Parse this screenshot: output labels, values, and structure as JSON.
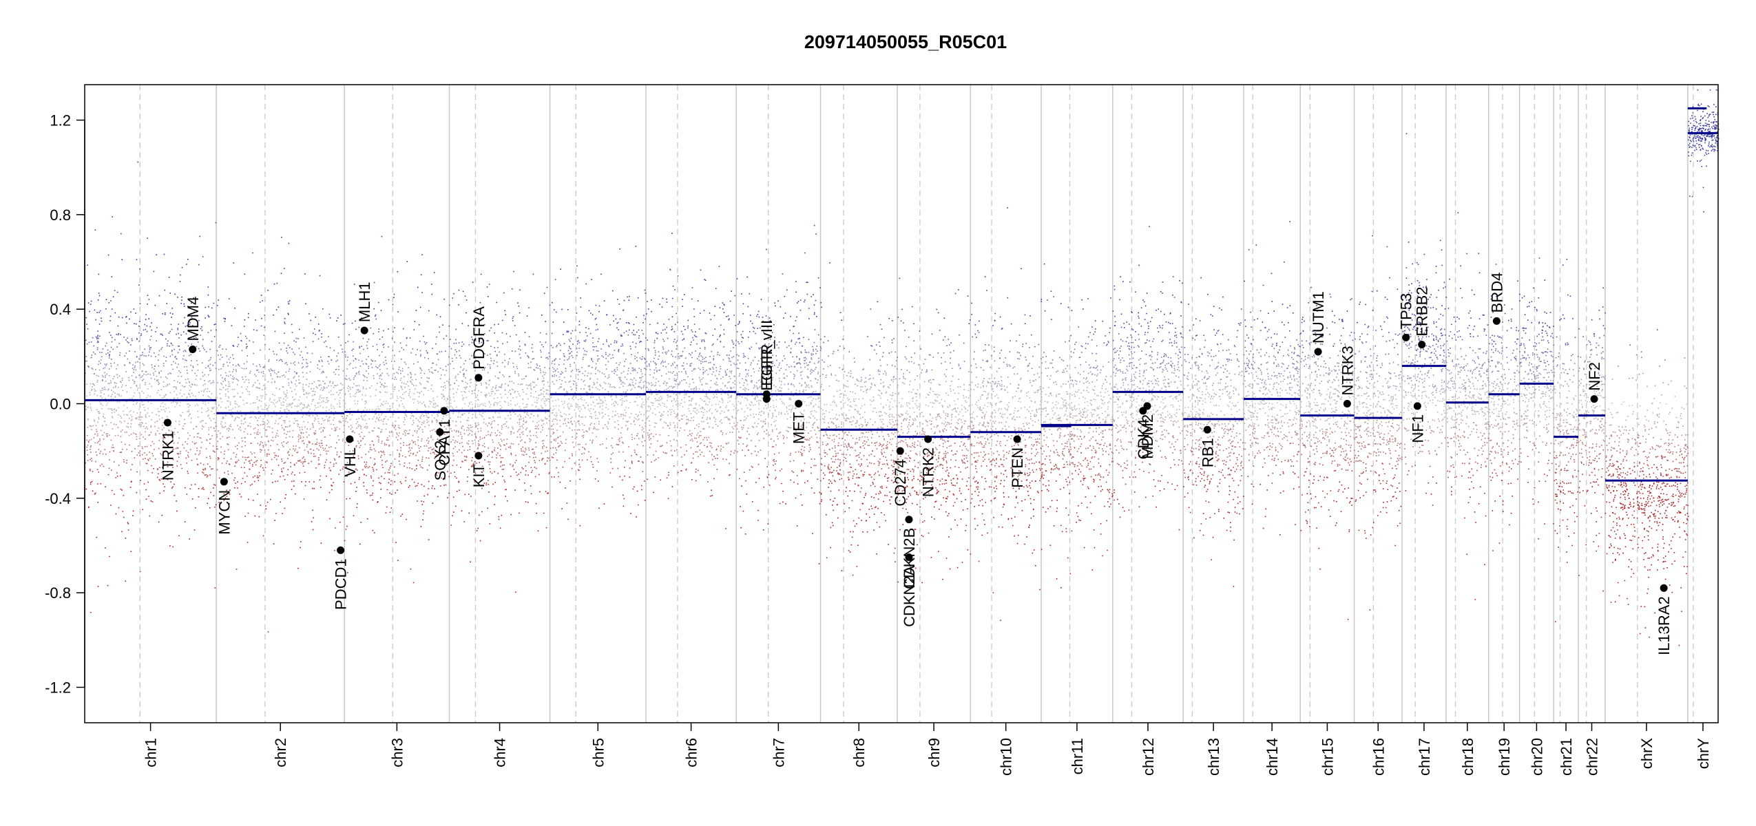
{
  "chart_data": {
    "type": "scatter",
    "title": "209714050055_R05C01",
    "xlabel": "",
    "ylabel": "",
    "ylim": [
      -1.35,
      1.35
    ],
    "yticks": [
      -1.2,
      -0.8,
      -0.4,
      0.0,
      0.4,
      0.8,
      1.2
    ],
    "ytick_labels": [
      "-1.2",
      "-0.8",
      "-0.4",
      "0.0",
      "0.4",
      "0.8",
      "1.2"
    ],
    "colors": {
      "gain": "#3b3ba0",
      "loss": "#a82020",
      "neutral": "#bdbdbd",
      "segment": "#00008b",
      "gene": "#000000",
      "border": "#c8c8c8",
      "centromere": "#c8c8c8"
    },
    "chromosomes": [
      {
        "name": "chr1",
        "start": 0.0,
        "end": 248.9,
        "centromere": 0.42,
        "segment": 0.015,
        "sd": 0.22
      },
      {
        "name": "chr2",
        "start": 248.9,
        "end": 491.1,
        "centromere": 0.38,
        "segment": -0.04,
        "sd": 0.2
      },
      {
        "name": "chr3",
        "start": 491.1,
        "end": 689.4,
        "centromere": 0.46,
        "segment": -0.035,
        "sd": 0.2
      },
      {
        "name": "chr4",
        "start": 689.4,
        "end": 879.6,
        "centromere": 0.26,
        "segment": -0.03,
        "sd": 0.2
      },
      {
        "name": "chr5",
        "start": 879.6,
        "end": 1061.1,
        "centromere": 0.27,
        "segment": 0.04,
        "sd": 0.18
      },
      {
        "name": "chr6",
        "start": 1061.1,
        "end": 1231.9,
        "centromere": 0.35,
        "segment": 0.05,
        "sd": 0.18
      },
      {
        "name": "chr7",
        "start": 1231.9,
        "end": 1391.2,
        "centromere": 0.38,
        "segment": 0.04,
        "sd": 0.19
      },
      {
        "name": "chr8",
        "start": 1391.2,
        "end": 1536.3,
        "centromere": 0.3,
        "segment": -0.11,
        "sd": 0.2
      },
      {
        "name": "chr9",
        "start": 1536.3,
        "end": 1674.7,
        "centromere": 0.31,
        "segment": -0.14,
        "sd": 0.2
      },
      {
        "name": "chr10",
        "start": 1674.7,
        "end": 1808.5,
        "centromere": 0.3,
        "segment": -0.12,
        "sd": 0.21
      },
      {
        "name": "chr11",
        "start": 1808.5,
        "end": 1943.6,
        "centromere": 0.4,
        "segment": -0.09,
        "sd": 0.2
      },
      {
        "name": "chr12",
        "start": 1943.6,
        "end": 2076.9,
        "centromere": 0.27,
        "segment": 0.05,
        "sd": 0.2
      },
      {
        "name": "chr13",
        "start": 2076.9,
        "end": 2191.3,
        "centromere": 0.15,
        "segment": -0.065,
        "sd": 0.2
      },
      {
        "name": "chr14",
        "start": 2191.3,
        "end": 2298.3,
        "centromere": 0.16,
        "segment": 0.02,
        "sd": 0.18
      },
      {
        "name": "chr15",
        "start": 2298.3,
        "end": 2400.3,
        "centromere": 0.18,
        "segment": -0.05,
        "sd": 0.2
      },
      {
        "name": "chr16",
        "start": 2400.3,
        "end": 2490.6,
        "centromere": 0.4,
        "segment": -0.06,
        "sd": 0.2
      },
      {
        "name": "chr17",
        "start": 2490.6,
        "end": 2573.9,
        "centromere": 0.3,
        "segment": 0.16,
        "sd": 0.2
      },
      {
        "name": "chr18",
        "start": 2573.9,
        "end": 2654.3,
        "centromere": 0.22,
        "segment": 0.005,
        "sd": 0.2
      },
      {
        "name": "chr19",
        "start": 2654.3,
        "end": 2712.9,
        "centromere": 0.45,
        "segment": 0.04,
        "sd": 0.2
      },
      {
        "name": "chr20",
        "start": 2712.9,
        "end": 2777.3,
        "centromere": 0.44,
        "segment": 0.085,
        "sd": 0.18
      },
      {
        "name": "chr21",
        "start": 2777.3,
        "end": 2824.0,
        "centromere": 0.26,
        "segment": -0.14,
        "sd": 0.2
      },
      {
        "name": "chr22",
        "start": 2824.0,
        "end": 2874.8,
        "centromere": 0.3,
        "segment": -0.05,
        "sd": 0.2
      },
      {
        "name": "chrX",
        "start": 2874.8,
        "end": 3030.9,
        "centromere": 0.39,
        "segment": -0.325,
        "sd": 0.2
      },
      {
        "name": "chrY",
        "start": 3030.9,
        "end": 3088.3,
        "centromere": 0.18,
        "segment": 1.145,
        "sd": 0.05
      }
    ],
    "extra_segments": [
      {
        "chrom": "chr11",
        "from": 0.0,
        "to": 0.42,
        "value": -0.095
      },
      {
        "chrom": "chrY",
        "from": 0.0,
        "to": 0.62,
        "value": 1.25
      }
    ],
    "genes": [
      {
        "name": "NTRK1",
        "chrom": "chr1",
        "pos": 0.63,
        "value": -0.08,
        "label_side": "below"
      },
      {
        "name": "MDM4",
        "chrom": "chr1",
        "pos": 0.82,
        "value": 0.23,
        "label_side": "above"
      },
      {
        "name": "MYCN",
        "chrom": "chr2",
        "pos": 0.06,
        "value": -0.33,
        "label_side": "below"
      },
      {
        "name": "PDCD1",
        "chrom": "chr2",
        "pos": 0.97,
        "value": -0.62,
        "label_side": "below"
      },
      {
        "name": "VHL",
        "chrom": "chr3",
        "pos": 0.05,
        "value": -0.15,
        "label_side": "below"
      },
      {
        "name": "MLH1",
        "chrom": "chr3",
        "pos": 0.19,
        "value": 0.31,
        "label_side": "above"
      },
      {
        "name": "SOX2",
        "chrom": "chr3",
        "pos": 0.91,
        "value": -0.12,
        "label_side": "below"
      },
      {
        "name": "CPAT1",
        "chrom": "chr3",
        "pos": 0.95,
        "value": -0.03,
        "label_side": "below"
      },
      {
        "name": "PDGFRA",
        "chrom": "chr4",
        "pos": 0.29,
        "value": 0.11,
        "label_side": "above"
      },
      {
        "name": "KIT",
        "chrom": "chr4",
        "pos": 0.29,
        "value": -0.22,
        "label_side": "below"
      },
      {
        "name": "EGFR",
        "chrom": "chr7",
        "pos": 0.36,
        "value": 0.04,
        "label_side": "above"
      },
      {
        "name": "EGFR_vIII",
        "chrom": "chr7",
        "pos": 0.36,
        "value": 0.02,
        "label_side": "above"
      },
      {
        "name": "MET",
        "chrom": "chr7",
        "pos": 0.74,
        "value": 0.0,
        "label_side": "below"
      },
      {
        "name": "CD274",
        "chrom": "chr9",
        "pos": 0.04,
        "value": -0.2,
        "label_side": "below"
      },
      {
        "name": "CDKN2A",
        "chrom": "chr9",
        "pos": 0.16,
        "value": -0.65,
        "label_side": "below"
      },
      {
        "name": "CDKN2B",
        "chrom": "chr9",
        "pos": 0.16,
        "value": -0.49,
        "label_side": "below"
      },
      {
        "name": "NTRK2",
        "chrom": "chr9",
        "pos": 0.42,
        "value": -0.15,
        "label_side": "below"
      },
      {
        "name": "PTEN",
        "chrom": "chr10",
        "pos": 0.66,
        "value": -0.15,
        "label_side": "below"
      },
      {
        "name": "CDK4",
        "chrom": "chr12",
        "pos": 0.43,
        "value": -0.03,
        "label_side": "below"
      },
      {
        "name": "MDM2",
        "chrom": "chr12",
        "pos": 0.49,
        "value": -0.01,
        "label_side": "below"
      },
      {
        "name": "RB1",
        "chrom": "chr13",
        "pos": 0.4,
        "value": -0.11,
        "label_side": "below"
      },
      {
        "name": "NUTM1",
        "chrom": "chr15",
        "pos": 0.33,
        "value": 0.22,
        "label_side": "above"
      },
      {
        "name": "NTRK3",
        "chrom": "chr15",
        "pos": 0.87,
        "value": 0.0,
        "label_side": "above"
      },
      {
        "name": "TP53",
        "chrom": "chr17",
        "pos": 0.09,
        "value": 0.28,
        "label_side": "above"
      },
      {
        "name": "ERBB2",
        "chrom": "chr17",
        "pos": 0.45,
        "value": 0.25,
        "label_side": "above"
      },
      {
        "name": "NF1",
        "chrom": "chr17",
        "pos": 0.35,
        "value": -0.01,
        "label_side": "below"
      },
      {
        "name": "BRD4",
        "chrom": "chr19",
        "pos": 0.26,
        "value": 0.35,
        "label_side": "above"
      },
      {
        "name": "NF2",
        "chrom": "chr22",
        "pos": 0.59,
        "value": 0.02,
        "label_side": "above"
      },
      {
        "name": "IL13RA2",
        "chrom": "chrX",
        "pos": 0.71,
        "value": -0.78,
        "label_side": "below"
      }
    ]
  }
}
